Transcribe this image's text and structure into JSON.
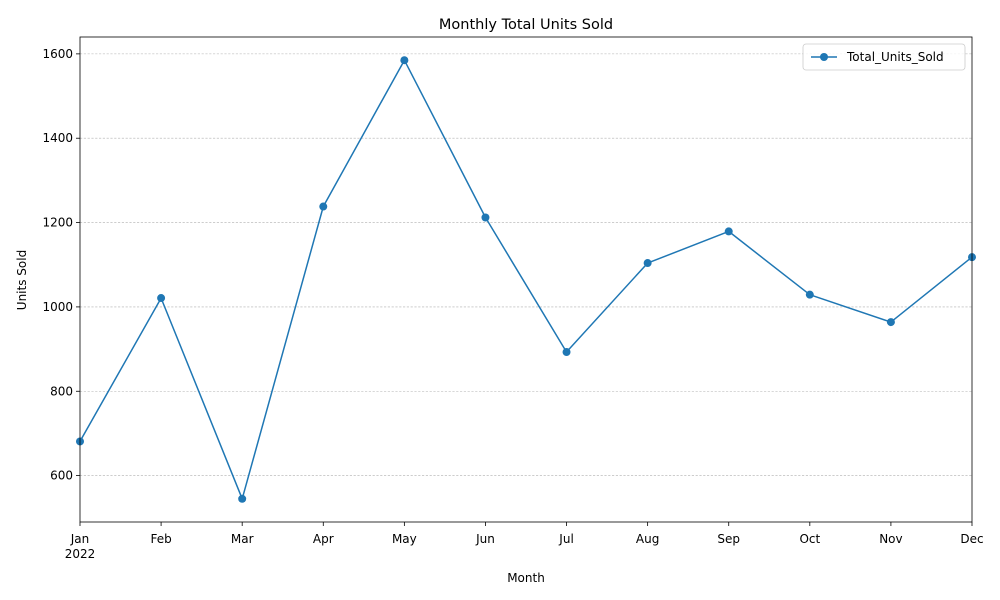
{
  "chart_data": {
    "type": "line",
    "title": "Monthly Total Units Sold",
    "xlabel": "Month",
    "ylabel": "Units Sold",
    "categories": [
      "Jan",
      "Feb",
      "Mar",
      "Apr",
      "May",
      "Jun",
      "Jul",
      "Aug",
      "Sep",
      "Oct",
      "Nov",
      "Dec"
    ],
    "year_label": "2022",
    "series": [
      {
        "name": "Total_Units_Sold",
        "color": "#1f77b4",
        "marker": "circle",
        "values": [
          681,
          1021,
          545,
          1238,
          1585,
          1212,
          893,
          1104,
          1179,
          1029,
          964,
          1118
        ]
      }
    ],
    "ylim": [
      490,
      1640
    ],
    "yticks": [
      600,
      800,
      1000,
      1200,
      1400,
      1600
    ],
    "grid": "y-axis dashed",
    "legend": "top-right"
  }
}
